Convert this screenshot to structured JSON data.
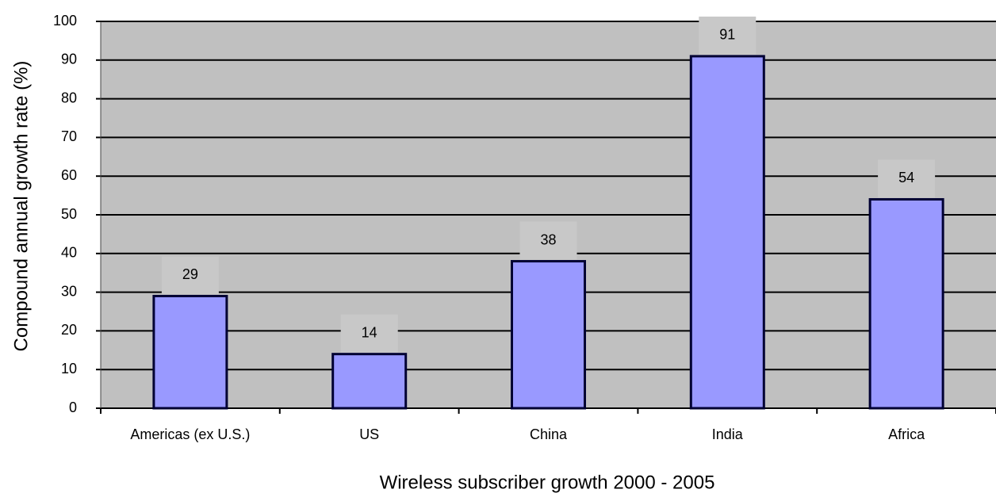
{
  "chart_data": {
    "type": "bar",
    "x_label": "Wireless subscriber growth 2000 - 2005",
    "y_label": "Compound annual growth rate (%)",
    "categories": [
      "Americas (ex U.S.)",
      "US",
      "China",
      "India",
      "Africa"
    ],
    "values": [
      29,
      14,
      38,
      91,
      54
    ],
    "color": "#9999ff",
    "ylim": [
      0,
      100
    ],
    "yticks": [
      0,
      10,
      20,
      30,
      40,
      50,
      60,
      70,
      80,
      90,
      100
    ],
    "grid": true
  }
}
